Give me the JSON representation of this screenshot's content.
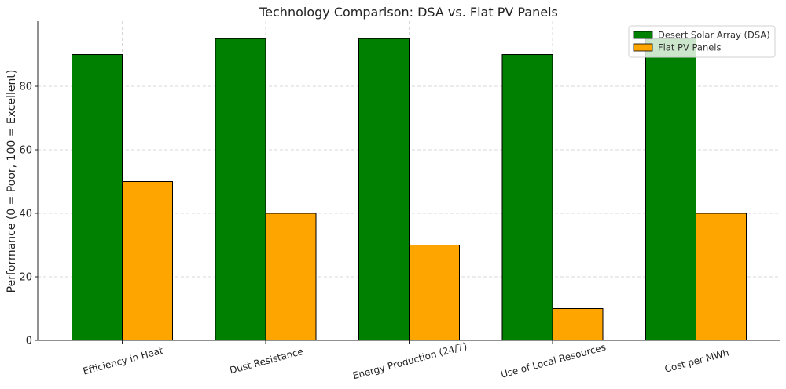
{
  "chart_data": {
    "type": "bar",
    "title": "Technology Comparison: DSA vs. Flat PV Panels",
    "xlabel": "",
    "ylabel": "Performance (0 = Poor, 100 = Excellent)",
    "ylim": [
      0,
      100
    ],
    "yticks": [
      0,
      20,
      40,
      60,
      80
    ],
    "grid": true,
    "legend_position": "top-right",
    "categories": [
      "Efficiency in Heat",
      "Dust Resistance",
      "Energy Production (24/7)",
      "Use of Local Resources",
      "Cost per MWh"
    ],
    "series": [
      {
        "name": "Desert Solar Array (DSA)",
        "color": "#008000",
        "values": [
          90,
          95,
          95,
          90,
          95
        ]
      },
      {
        "name": "Flat PV Panels",
        "color": "#FFA500",
        "values": [
          50,
          40,
          30,
          10,
          40
        ]
      }
    ]
  }
}
